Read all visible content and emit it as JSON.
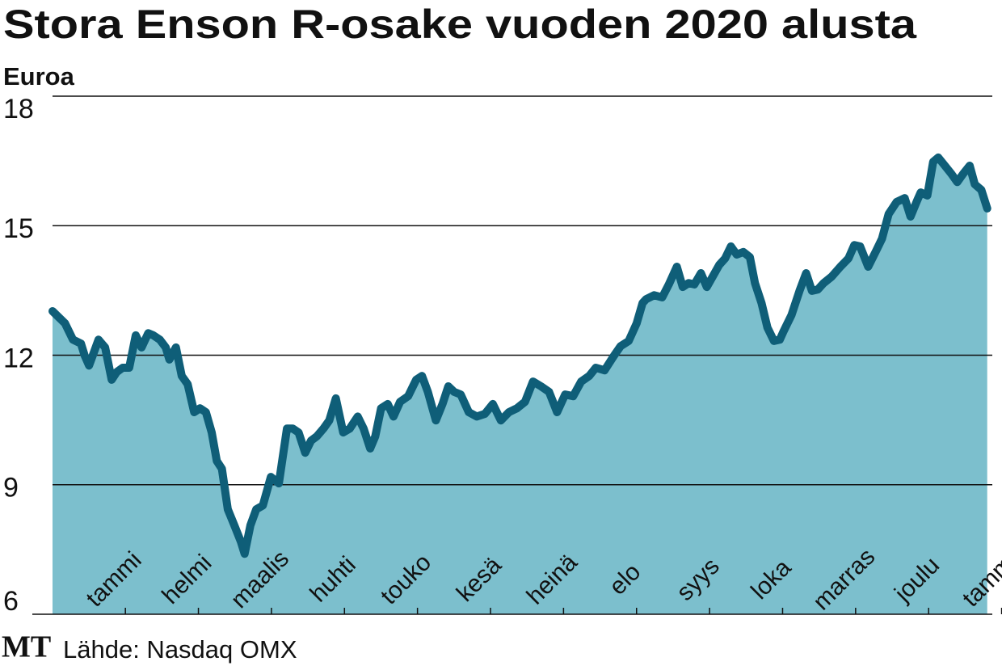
{
  "chart_data": {
    "type": "area",
    "title": "Stora Enson R-osake vuoden 2020 alusta",
    "y_label": "Euroa",
    "source": "Lähde: Nasdaq OMX",
    "logo": "MT",
    "line_color": "#0f5e78",
    "fill_color": "#7cbfcd",
    "grid": true,
    "ylim": [
      6,
      18
    ],
    "yticks": [
      6,
      9,
      12,
      15,
      18
    ],
    "xlim": [
      0,
      12.87
    ],
    "xticks": [
      {
        "value": 0.5,
        "label": "tammi"
      },
      {
        "value": 1.5,
        "label": "helmi"
      },
      {
        "value": 2.5,
        "label": "maalis"
      },
      {
        "value": 3.5,
        "label": "huhti"
      },
      {
        "value": 4.5,
        "label": "touko"
      },
      {
        "value": 5.5,
        "label": "kesä"
      },
      {
        "value": 6.5,
        "label": "heinä"
      },
      {
        "value": 7.5,
        "label": "elo"
      },
      {
        "value": 8.5,
        "label": "syys"
      },
      {
        "value": 9.5,
        "label": "loka"
      },
      {
        "value": 10.5,
        "label": "marras"
      },
      {
        "value": 11.5,
        "label": "joulu"
      },
      {
        "value": 12.5,
        "label": "tammi"
      }
    ],
    "x": [
      0,
      0.17,
      0.28,
      0.39,
      0.44,
      0.5,
      0.55,
      0.63,
      0.72,
      0.81,
      0.88,
      0.96,
      1.05,
      1.14,
      1.22,
      1.31,
      1.38,
      1.47,
      1.55,
      1.6,
      1.69,
      1.77,
      1.85,
      1.94,
      2.02,
      2.1,
      2.18,
      2.25,
      2.32,
      2.4,
      2.49,
      2.58,
      2.63,
      2.71,
      2.79,
      2.88,
      2.99,
      3.1,
      3.21,
      3.29,
      3.37,
      3.46,
      3.54,
      3.62,
      3.71,
      3.79,
      3.88,
      3.98,
      4.07,
      4.18,
      4.26,
      4.35,
      4.42,
      4.5,
      4.59,
      4.67,
      4.76,
      4.87,
      4.98,
      5.06,
      5.14,
      5.25,
      5.34,
      5.42,
      5.5,
      5.59,
      5.7,
      5.81,
      5.92,
      6.03,
      6.14,
      6.25,
      6.36,
      6.47,
      6.58,
      6.69,
      6.8,
      6.91,
      7.02,
      7.13,
      7.24,
      7.35,
      7.44,
      7.56,
      7.69,
      7.78,
      7.89,
      8.0,
      8.08,
      8.13,
      8.24,
      8.35,
      8.44,
      8.55,
      8.63,
      8.71,
      8.79,
      8.88,
      8.96,
      9.04,
      9.13,
      9.21,
      9.29,
      9.37,
      9.46,
      9.55,
      9.62,
      9.71,
      9.79,
      9.88,
      9.96,
      10.01,
      10.12,
      10.23,
      10.32,
      10.4,
      10.48,
      10.56,
      10.67,
      10.79,
      10.9,
      10.98,
      11.06,
      11.17,
      11.28,
      11.36,
      11.45,
      11.56,
      11.67,
      11.75,
      11.84,
      11.89,
      11.98,
      12.06,
      12.13,
      12.22,
      12.31,
      12.39,
      12.47,
      12.56,
      12.63,
      12.72,
      12.8
    ],
    "values": [
      13.02,
      12.74,
      12.36,
      12.27,
      11.99,
      11.76,
      11.99,
      12.36,
      12.18,
      11.43,
      11.61,
      11.71,
      11.71,
      12.46,
      12.18,
      12.51,
      12.46,
      12.36,
      12.18,
      11.9,
      12.18,
      11.52,
      11.33,
      10.68,
      10.77,
      10.68,
      10.21,
      9.55,
      9.37,
      8.43,
      8.06,
      7.68,
      7.4,
      8.06,
      8.43,
      8.52,
      9.18,
      9.03,
      10.3,
      10.3,
      10.21,
      9.74,
      10.02,
      10.12,
      10.3,
      10.49,
      11.0,
      10.21,
      10.3,
      10.58,
      10.3,
      9.84,
      10.12,
      10.77,
      10.87,
      10.58,
      10.92,
      11.05,
      11.43,
      11.52,
      11.15,
      10.49,
      10.87,
      11.28,
      11.15,
      11.09,
      10.68,
      10.58,
      10.64,
      10.87,
      10.49,
      10.68,
      10.77,
      10.92,
      11.39,
      11.28,
      11.15,
      10.68,
      11.09,
      11.05,
      11.39,
      11.52,
      11.71,
      11.65,
      11.99,
      12.21,
      12.33,
      12.74,
      13.21,
      13.3,
      13.39,
      13.34,
      13.64,
      14.05,
      13.58,
      13.67,
      13.64,
      13.9,
      13.58,
      13.82,
      14.09,
      14.24,
      14.52,
      14.33,
      14.39,
      14.27,
      13.67,
      13.21,
      12.64,
      12.33,
      12.36,
      12.55,
      12.93,
      13.49,
      13.9,
      13.49,
      13.52,
      13.67,
      13.82,
      14.05,
      14.24,
      14.55,
      14.52,
      14.05,
      14.42,
      14.7,
      15.27,
      15.55,
      15.64,
      15.21,
      15.58,
      15.77,
      15.7,
      16.48,
      16.58,
      16.39,
      16.2,
      16.01,
      16.2,
      16.39,
      15.96,
      15.83,
      15.4
    ]
  }
}
